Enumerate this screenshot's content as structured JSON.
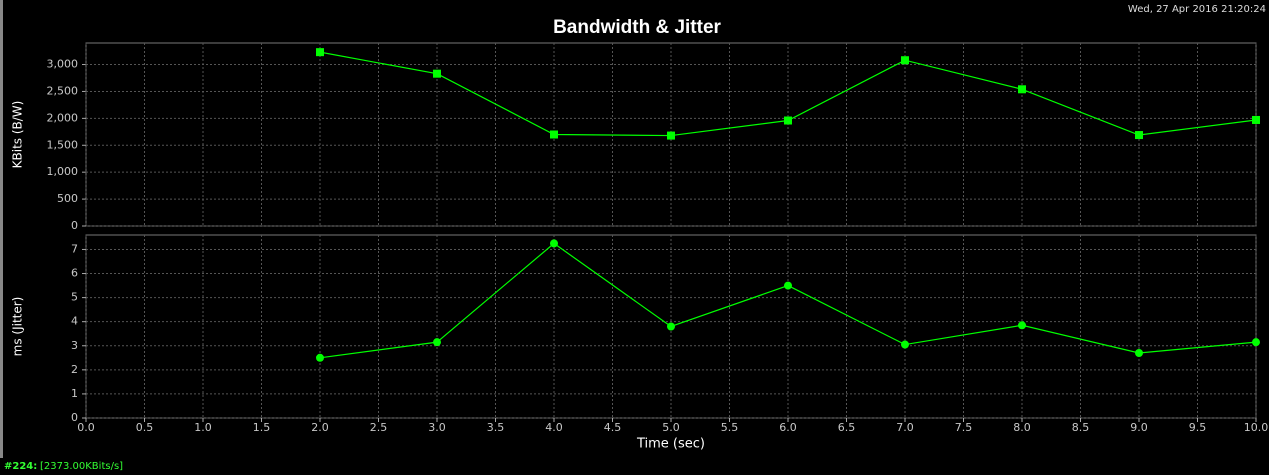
{
  "timestamp": "Wed, 27 Apr 2016 21:20:24",
  "status": {
    "id": "#224:",
    "text": "[2373.00KBits/s]"
  },
  "chart_data": [
    {
      "type": "line",
      "title": "Bandwidth & Jitter",
      "y_label": "KBits (B/W)",
      "marker": "square",
      "grid": true,
      "x": [
        2,
        3,
        4,
        5,
        6,
        7,
        8,
        9,
        10
      ],
      "series": [
        {
          "name": "B/W",
          "color": "#00ff00",
          "values": [
            3230,
            2830,
            1700,
            1680,
            1960,
            3080,
            2540,
            1690,
            1970
          ]
        }
      ],
      "xlim": [
        0,
        10
      ],
      "ylim": [
        0,
        3400
      ],
      "yticks": [
        0,
        500,
        {
          "value": 1000,
          "label": "1,000"
        },
        {
          "value": 1500,
          "label": "1,500"
        },
        {
          "value": 2000,
          "label": "2,000"
        },
        {
          "value": 2500,
          "label": "2,500"
        },
        {
          "value": 3000,
          "label": "3,000"
        }
      ]
    },
    {
      "type": "line",
      "y_label": "ms (Jitter)",
      "x_label": "Time (sec)",
      "marker": "circle",
      "grid": true,
      "x": [
        2,
        3,
        4,
        5,
        6,
        7,
        8,
        9,
        10
      ],
      "series": [
        {
          "name": "Jitter",
          "color": "#00ff00",
          "values": [
            2.5,
            3.15,
            7.25,
            3.8,
            5.5,
            3.05,
            3.85,
            2.7,
            3.15
          ]
        }
      ],
      "xlim": [
        0,
        10
      ],
      "ylim": [
        0,
        7.6
      ],
      "yticks": [
        0,
        1,
        2,
        3,
        4,
        5,
        6,
        7
      ],
      "xticks": [
        {
          "value": 0,
          "label": "0.0"
        },
        0.5,
        {
          "value": 1,
          "label": "1.0"
        },
        1.5,
        {
          "value": 2,
          "label": "2.0"
        },
        2.5,
        {
          "value": 3,
          "label": "3.0"
        },
        3.5,
        {
          "value": 4,
          "label": "4.0"
        },
        4.5,
        {
          "value": 5,
          "label": "5.0"
        },
        5.5,
        {
          "value": 6,
          "label": "6.0"
        },
        6.5,
        {
          "value": 7,
          "label": "7.0"
        },
        7.5,
        {
          "value": 8,
          "label": "8.0"
        },
        8.5,
        {
          "value": 9,
          "label": "9.0"
        },
        9.5,
        {
          "value": 10,
          "label": "10.0"
        }
      ]
    }
  ]
}
